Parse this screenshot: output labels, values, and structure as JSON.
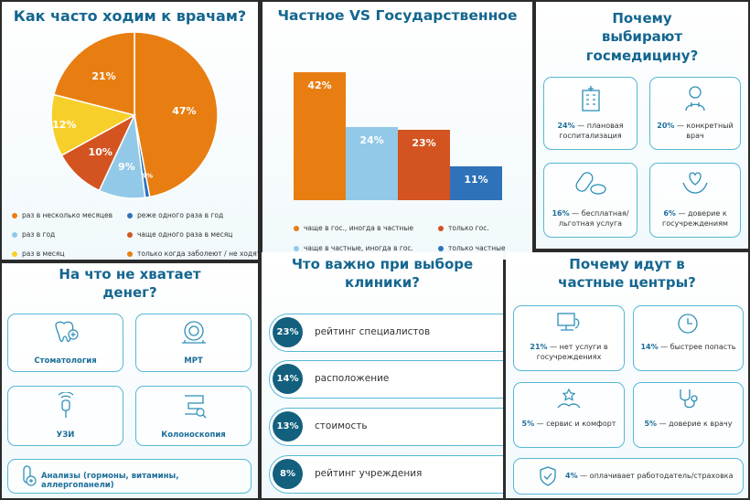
{
  "panel1": {
    "title": "Как часто ходим к врачам?",
    "legend": [
      "раз в несколько месяцев",
      "реже одного раза в год",
      "раз в год",
      "чаще одного раза в месяц",
      "раз в месяц",
      "только когда заболеют / не ходят"
    ]
  },
  "panel2": {
    "title": "Частное VS Государственное",
    "legend": [
      "чаще в гос., иногда в частные",
      "только гос.",
      "чаще в частные, иногда в гос.",
      "только частные"
    ]
  },
  "panel3": {
    "title": "Почему выбирают госмедицину?",
    "cards": [
      {
        "pct": "24%",
        "text": "— плановая госпитализация"
      },
      {
        "pct": "20%",
        "text": "— конкретный врач"
      },
      {
        "pct": "16%",
        "text": "— бесплатная/ льготная услуга"
      },
      {
        "pct": "6%",
        "text": "— доверие к госучреждениям"
      }
    ]
  },
  "panel4": {
    "title": "На что не хватает денег?",
    "cards": [
      "Стоматология",
      "МРТ",
      "УЗИ",
      "Колоноскопия",
      "Анализы (гормоны, витамины, аллергопанели)"
    ]
  },
  "panel5": {
    "title": "Что важно при выборе клиники?",
    "items": [
      {
        "pct": "23%",
        "text": "рейтинг специалистов"
      },
      {
        "pct": "14%",
        "text": "расположение"
      },
      {
        "pct": "13%",
        "text": "стоимость"
      },
      {
        "pct": "8%",
        "text": "рейтинг учреждения"
      }
    ]
  },
  "panel6": {
    "title": "Почему идут в частные центры?",
    "cards": [
      {
        "pct": "21%",
        "text": "— нет услуги в госучреждениях"
      },
      {
        "pct": "14%",
        "text": "— быстрее попасть"
      },
      {
        "pct": "5%",
        "text": "— сервис и комфорт"
      },
      {
        "pct": "5%",
        "text": "— доверие к врачу"
      },
      {
        "pct": "4%",
        "text": "— оплачивает работодатель/страховка"
      }
    ]
  },
  "colors": {
    "orange": "#e87e12",
    "light_blue": "#92c9e8",
    "red_orange": "#d35420",
    "blue": "#2e72b9",
    "yellow": "#f6cf2a",
    "title": "#14668f",
    "dark_teal": "#12607d",
    "card_border": "#56b8d4"
  },
  "chart_data": [
    {
      "type": "pie",
      "title": "Как часто ходим к врачам?",
      "labels": [
        "раз в несколько месяцев",
        "реже одного раза в год",
        "раз в год",
        "чаще одного раза в месяц",
        "раз в месяц",
        "только когда заболеют / не ходят"
      ],
      "values": [
        47,
        10,
        21,
        12,
        0.9,
        9
      ],
      "value_labels": [
        "47%",
        "10%",
        "21%",
        "12%",
        "0.9%",
        "9%"
      ],
      "slice_order": [
        "раз в несколько месяцев",
        "раз в месяц",
        "только когда заболеют / не ходят",
        "реже одного раза в год",
        "чаще одного раза в месяц",
        "раз в год"
      ],
      "colors": [
        "#e87e12",
        "#2e72b9",
        "#92c9e8",
        "#d35420",
        "#f6cf2a",
        "#e87e12"
      ],
      "legend_position": "bottom"
    },
    {
      "type": "bar",
      "title": "Частное VS Государственное",
      "categories": [
        "чаще в гос., иногда в частные",
        "чаще в частные, иногда в гос.",
        "только гос.",
        "только частные"
      ],
      "values": [
        42,
        24,
        23,
        11
      ],
      "value_labels": [
        "42%",
        "24%",
        "23%",
        "11%"
      ],
      "colors": [
        "#e87e12",
        "#92c9e8",
        "#d35420",
        "#2e72b9"
      ],
      "ylim": [
        0,
        45
      ],
      "grid": false,
      "legend_position": "bottom"
    },
    {
      "type": "table",
      "title": "Почему выбирают госмедицину?",
      "rows": [
        [
          "плановая госпитализация",
          24
        ],
        [
          "конкретный врач",
          20
        ],
        [
          "бесплатная/ льготная услуга",
          16
        ],
        [
          "доверие к госучреждениям",
          6
        ]
      ]
    },
    {
      "type": "table",
      "title": "Что важно при выборе клиники?",
      "rows": [
        [
          "рейтинг специалистов",
          23
        ],
        [
          "расположение",
          14
        ],
        [
          "стоимость",
          13
        ],
        [
          "рейтинг учреждения",
          8
        ]
      ]
    },
    {
      "type": "table",
      "title": "Почему идут в частные центры?",
      "rows": [
        [
          "нет услуги в госучреждениях",
          21
        ],
        [
          "быстрее попасть",
          14
        ],
        [
          "сервис и комфорт",
          5
        ],
        [
          "доверие к врачу",
          5
        ],
        [
          "оплачивает работодатель/страховка",
          4
        ]
      ]
    }
  ]
}
